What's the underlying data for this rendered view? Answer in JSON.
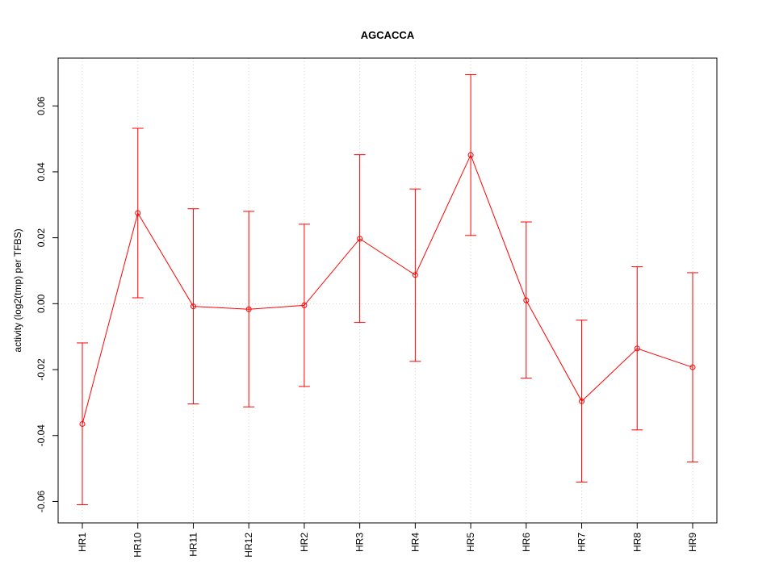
{
  "chart_data": {
    "type": "line",
    "title": "AGCACCA",
    "xlabel": "",
    "ylabel": "activity (log2(tmp) per TFBS)",
    "categories": [
      "HR1",
      "HR10",
      "HR11",
      "HR12",
      "HR2",
      "HR3",
      "HR4",
      "HR5",
      "HR6",
      "HR7",
      "HR8",
      "HR9"
    ],
    "series": [
      {
        "values": [
          -0.0365,
          0.0275,
          -0.0008,
          -0.0017,
          -0.0005,
          0.0197,
          0.0087,
          0.0451,
          0.001,
          -0.0296,
          -0.0136,
          -0.0193
        ],
        "lower": [
          -0.061,
          0.0018,
          -0.0304,
          -0.0313,
          -0.0251,
          -0.0057,
          -0.0175,
          0.0207,
          -0.0226,
          -0.0541,
          -0.0383,
          -0.048
        ],
        "upper": [
          -0.0119,
          0.0532,
          0.0288,
          0.028,
          0.0241,
          0.0452,
          0.0348,
          0.0695,
          0.0248,
          -0.005,
          0.0112,
          0.0094
        ]
      }
    ],
    "yticks": [
      "-0.06",
      "-0.04",
      "-0.02",
      "0.00",
      "0.02",
      "0.04",
      "0.06"
    ],
    "ylim": [
      -0.0665,
      0.0745
    ],
    "grid": true,
    "colors": {
      "series": "#ff0000",
      "grid": "#d3d3d3",
      "axis": "#000000"
    }
  }
}
